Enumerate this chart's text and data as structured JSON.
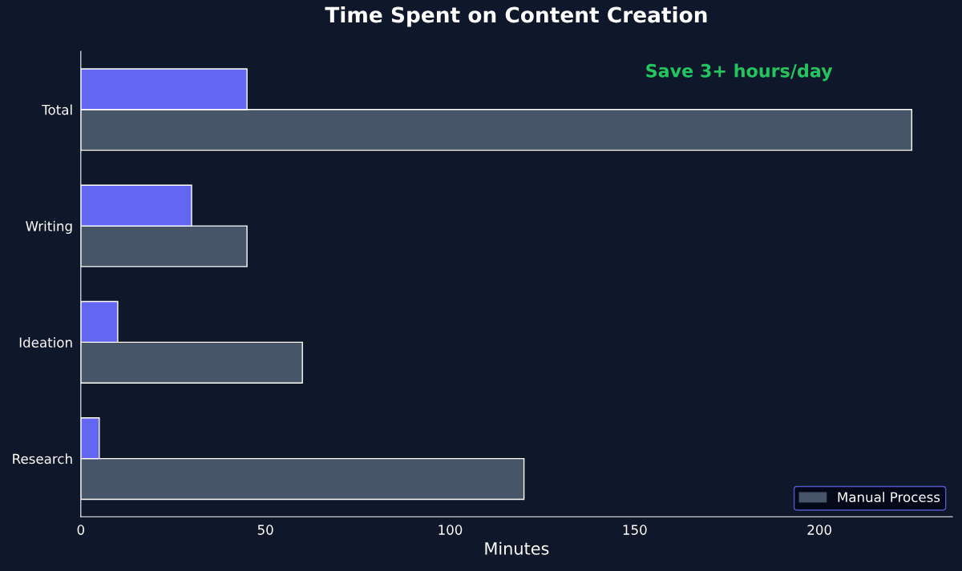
{
  "chart_data": {
    "type": "bar",
    "orientation": "horizontal",
    "title": "Time Spent on Content Creation",
    "xlabel": "Minutes",
    "categories": [
      "Total",
      "Writing",
      "Ideation",
      "Research"
    ],
    "series": [
      {
        "name": "Manual Process",
        "color": "#475569",
        "values": [
          225,
          45,
          60,
          120
        ]
      },
      {
        "color": "#6366f1",
        "values": [
          45,
          30,
          10,
          5
        ]
      }
    ],
    "xlim": [
      0,
      236
    ],
    "xticks": [
      0,
      50,
      100,
      150,
      200
    ],
    "grid": false,
    "legend": "bottom right",
    "annotations": [
      "Save 3+ hours/day"
    ]
  }
}
